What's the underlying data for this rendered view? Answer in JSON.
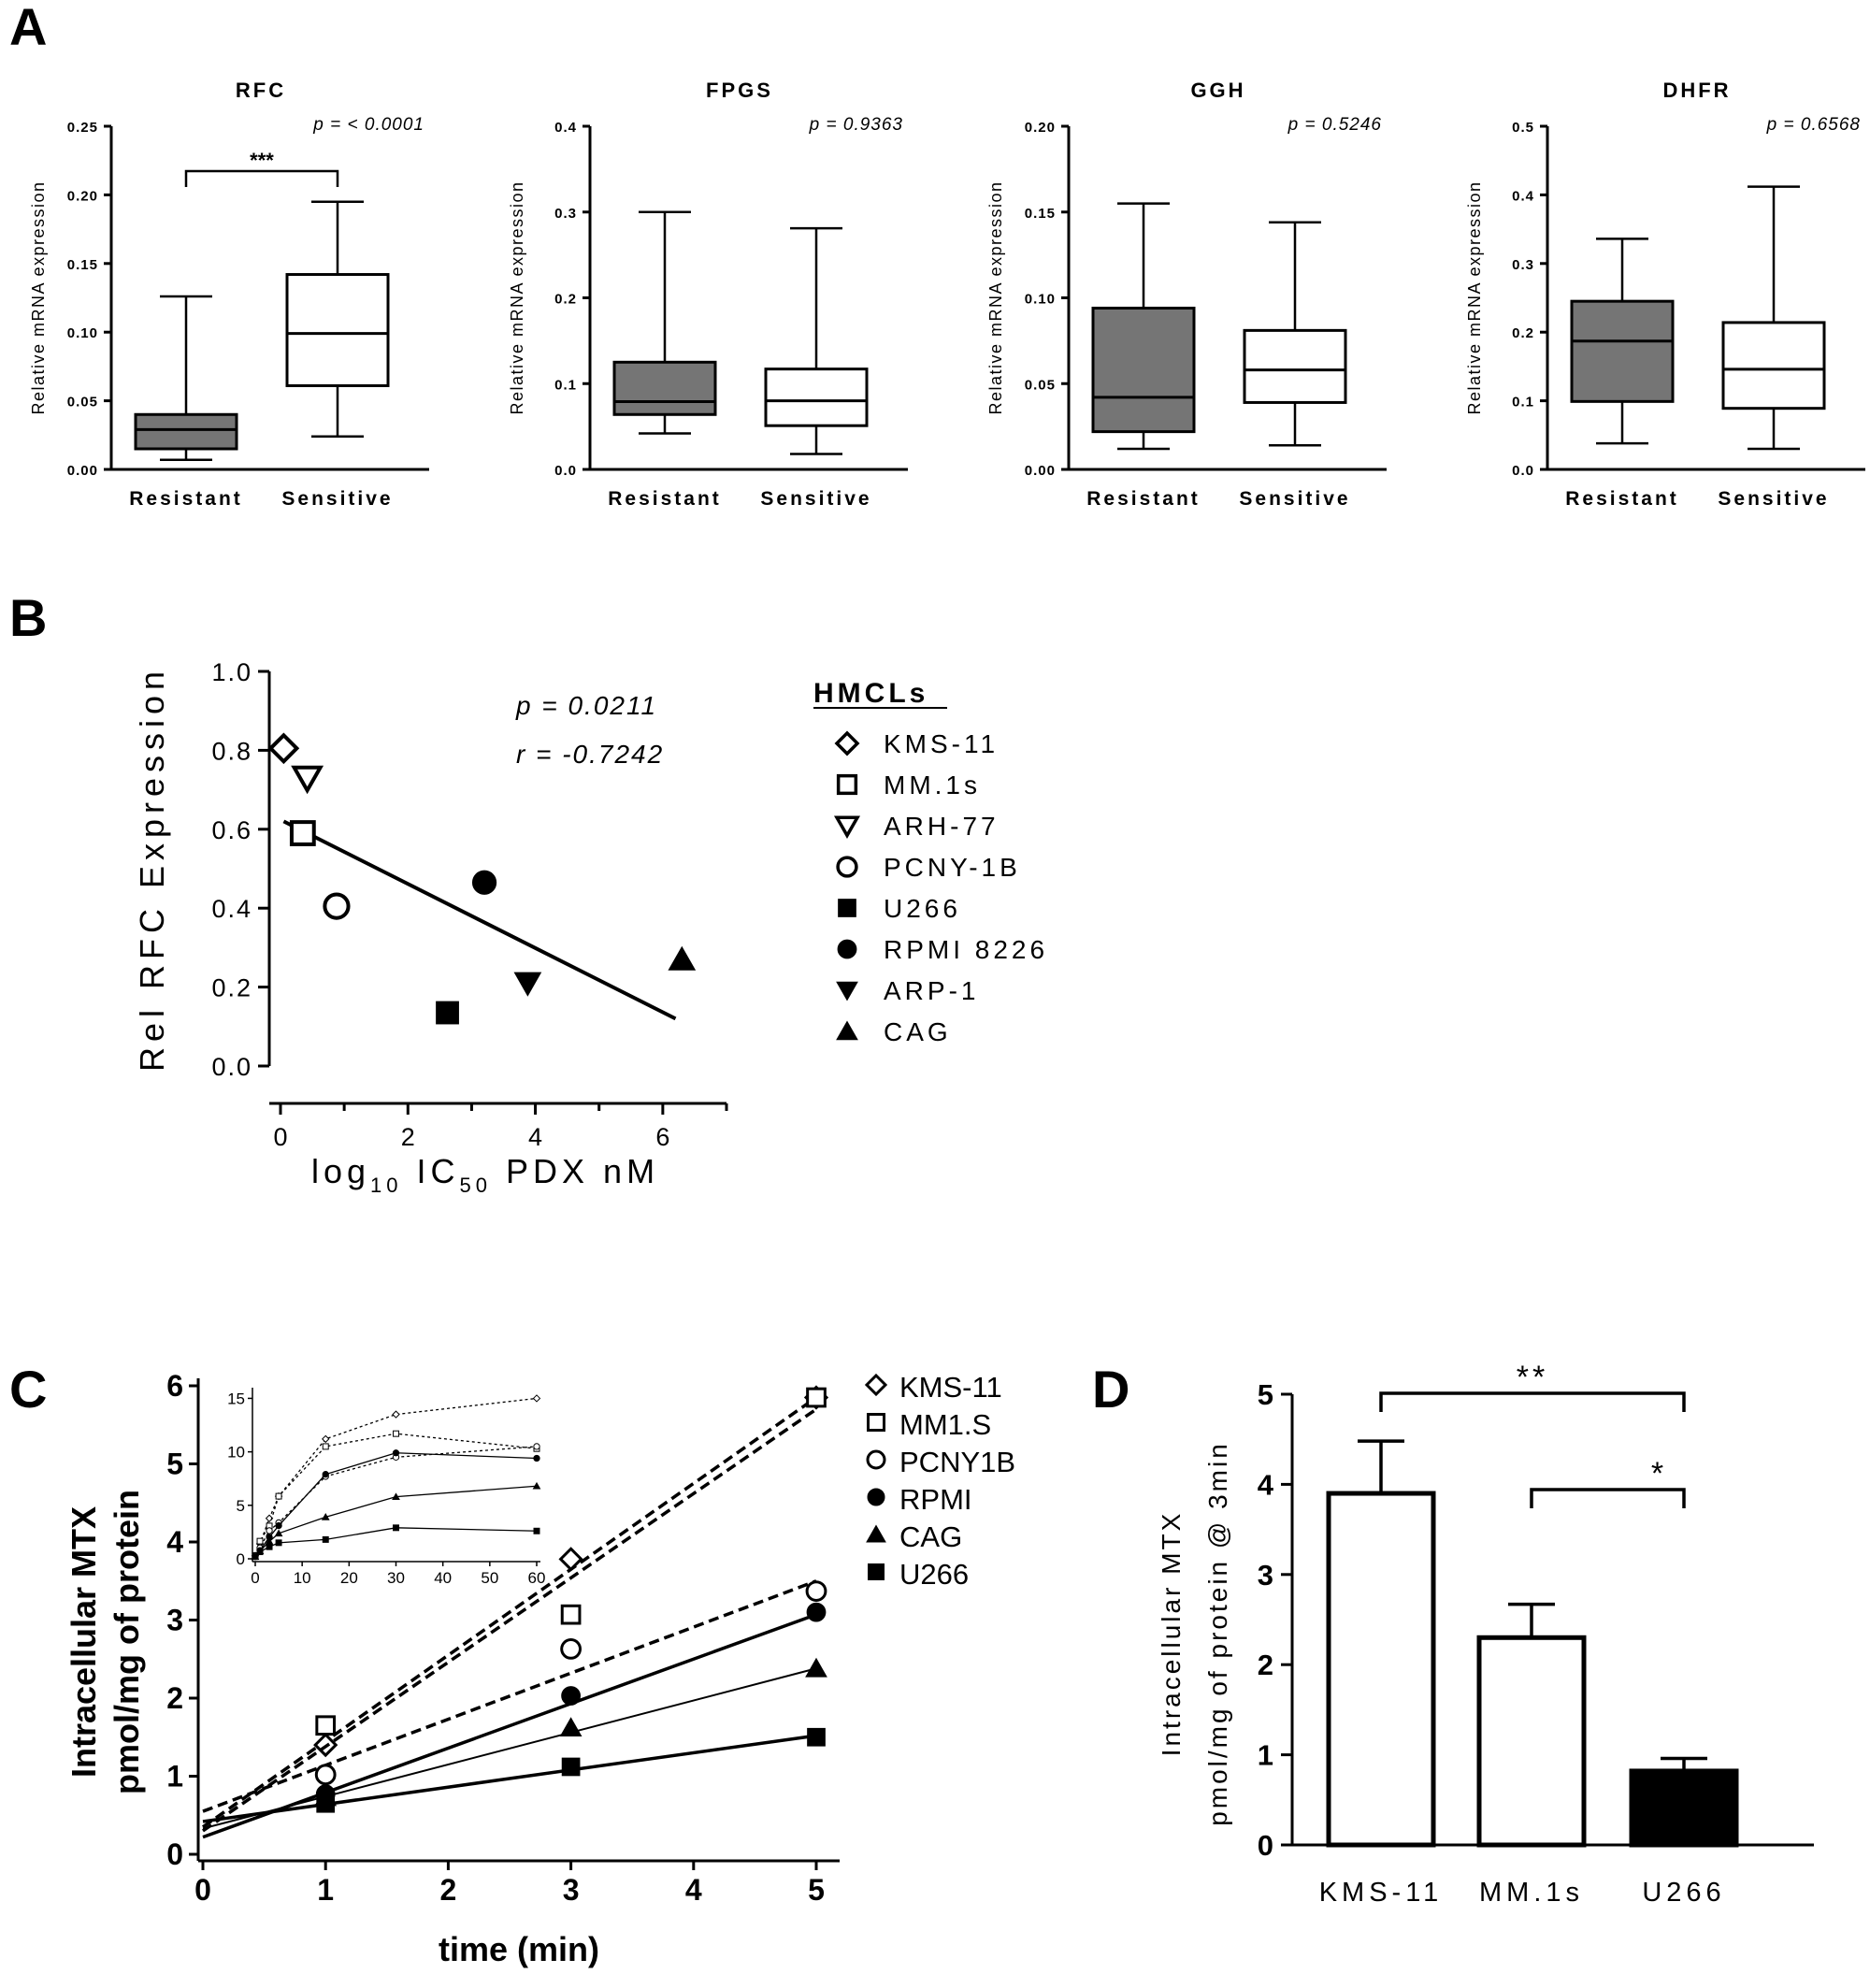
{
  "panel_labels": [
    "A",
    "B",
    "C",
    "D"
  ],
  "chart_data": [
    {
      "id": "A1",
      "type": "box",
      "title": "RFC",
      "ylabel": "Relative mRNA expression",
      "categories": [
        "Resistant",
        "Sensitive"
      ],
      "ylim": [
        0,
        0.25
      ],
      "yticks": [
        "0.00",
        "0.05",
        "0.10",
        "0.15",
        "0.20",
        "0.25"
      ],
      "pvalue": "p = < 0.0001",
      "significance": "***",
      "boxes": [
        {
          "group": "Resistant",
          "min": 0.007,
          "q1": 0.015,
          "median": 0.029,
          "q3": 0.04,
          "max": 0.126,
          "fill": "#757575"
        },
        {
          "group": "Sensitive",
          "min": 0.024,
          "q1": 0.061,
          "median": 0.099,
          "q3": 0.142,
          "max": 0.195,
          "fill": "#ffffff"
        }
      ]
    },
    {
      "id": "A2",
      "type": "box",
      "title": "FPGS",
      "ylabel": "Relative mRNA expression",
      "categories": [
        "Resistant",
        "Sensitive"
      ],
      "ylim": [
        0,
        0.4
      ],
      "yticks": [
        "0.0",
        "0.1",
        "0.2",
        "0.3",
        "0.4"
      ],
      "pvalue": "p =  0.9363",
      "boxes": [
        {
          "group": "Resistant",
          "min": 0.042,
          "q1": 0.064,
          "median": 0.079,
          "q3": 0.125,
          "max": 0.3,
          "fill": "#757575"
        },
        {
          "group": "Sensitive",
          "min": 0.018,
          "q1": 0.051,
          "median": 0.08,
          "q3": 0.117,
          "max": 0.281,
          "fill": "#ffffff"
        }
      ]
    },
    {
      "id": "A3",
      "type": "box",
      "title": "GGH",
      "ylabel": "Relative mRNA expression",
      "categories": [
        "Resistant",
        "Sensitive"
      ],
      "ylim": [
        0,
        0.2
      ],
      "yticks": [
        "0.00",
        "0.05",
        "0.10",
        "0.15",
        "0.20"
      ],
      "pvalue": "p =  0.5246",
      "boxes": [
        {
          "group": "Resistant",
          "min": 0.012,
          "q1": 0.022,
          "median": 0.042,
          "q3": 0.094,
          "max": 0.155,
          "fill": "#757575"
        },
        {
          "group": "Sensitive",
          "min": 0.014,
          "q1": 0.039,
          "median": 0.058,
          "q3": 0.081,
          "max": 0.144,
          "fill": "#ffffff"
        }
      ]
    },
    {
      "id": "A4",
      "type": "box",
      "title": "DHFR",
      "ylabel": "Relative mRNA expression",
      "categories": [
        "Resistant",
        "Sensitive"
      ],
      "ylim": [
        0,
        0.5
      ],
      "yticks": [
        "0.0",
        "0.1",
        "0.2",
        "0.3",
        "0.4",
        "0.5"
      ],
      "pvalue": "p =  0.6568",
      "boxes": [
        {
          "group": "Resistant",
          "min": 0.038,
          "q1": 0.099,
          "median": 0.187,
          "q3": 0.245,
          "max": 0.336,
          "fill": "#757575"
        },
        {
          "group": "Sensitive",
          "min": 0.03,
          "q1": 0.089,
          "median": 0.146,
          "q3": 0.214,
          "max": 0.412,
          "fill": "#ffffff"
        }
      ]
    },
    {
      "id": "B",
      "type": "scatter",
      "ylabel": "Rel RFC Expression",
      "xlabel_parts": [
        "log",
        "10",
        " IC",
        "50",
        " PDX nM"
      ],
      "xlim": [
        0,
        7
      ],
      "ylim": [
        0,
        1.0
      ],
      "xticks": [
        "0",
        "2",
        "4",
        "6"
      ],
      "yticks": [
        "0.0",
        "0.2",
        "0.4",
        "0.6",
        "0.8",
        "1.0"
      ],
      "pvalue": "p = 0.0211",
      "rvalue": "r = -0.7242",
      "legend_title": "HMCLs",
      "points": [
        {
          "name": "KMS-11",
          "x": 0.05,
          "y": 0.805,
          "marker": "diamond-open"
        },
        {
          "name": "MM.1s",
          "x": 0.35,
          "y": 0.59,
          "marker": "square-open"
        },
        {
          "name": "ARH-77",
          "x": 0.42,
          "y": 0.73,
          "marker": "tri-down-open"
        },
        {
          "name": "PCNY-1B",
          "x": 0.88,
          "y": 0.405,
          "marker": "circle-open"
        },
        {
          "name": "U266",
          "x": 2.62,
          "y": 0.135,
          "marker": "square"
        },
        {
          "name": "RPMI 8226",
          "x": 3.2,
          "y": 0.465,
          "marker": "circle"
        },
        {
          "name": "ARP-1",
          "x": 3.88,
          "y": 0.21,
          "marker": "tri-down"
        },
        {
          "name": "CAG",
          "x": 6.3,
          "y": 0.27,
          "marker": "tri-up"
        }
      ],
      "fit": {
        "x": [
          0.05,
          6.2
        ],
        "y": [
          0.62,
          0.12
        ]
      }
    },
    {
      "id": "C",
      "type": "line",
      "ylabel_lines": [
        "Intracellular MTX",
        "pmol/mg of protein"
      ],
      "xlabel": "time (min)",
      "xlim": [
        0,
        5.2
      ],
      "ylim": [
        0,
        6
      ],
      "xticks": [
        "0",
        "1",
        "2",
        "3",
        "4",
        "5"
      ],
      "yticks": [
        "0",
        "1",
        "2",
        "3",
        "4",
        "5",
        "6"
      ],
      "series": [
        {
          "name": "KMS-11",
          "marker": "diamond-open",
          "line": "dashed",
          "x": [
            1,
            3,
            5
          ],
          "y": [
            1.4,
            3.78,
            5.85
          ],
          "fit": [
            0.35,
            1.1
          ]
        },
        {
          "name": "MM1.S",
          "marker": "square-open",
          "line": "dashed",
          "x": [
            1,
            3,
            5
          ],
          "y": [
            1.65,
            3.07,
            5.85
          ],
          "fit": [
            0.3,
            1.08
          ]
        },
        {
          "name": "PCNY1B",
          "marker": "circle-open",
          "line": "dashed",
          "x": [
            1,
            3,
            5
          ],
          "y": [
            1.02,
            2.63,
            3.37
          ],
          "fit": [
            0.55,
            0.59
          ]
        },
        {
          "name": "RPMI",
          "marker": "circle",
          "line": "solid-thick",
          "x": [
            1,
            3,
            5
          ],
          "y": [
            0.77,
            2.03,
            3.1
          ],
          "fit": [
            0.22,
            0.57
          ]
        },
        {
          "name": "CAG",
          "marker": "tri-up",
          "line": "solid-thin",
          "x": [
            1,
            3,
            5
          ],
          "y": [
            0.73,
            1.62,
            2.38
          ],
          "fit": [
            0.33,
            0.41
          ]
        },
        {
          "name": "U266",
          "marker": "square",
          "line": "solid-thick",
          "x": [
            1,
            3,
            5
          ],
          "y": [
            0.65,
            1.12,
            1.5
          ],
          "fit": [
            0.42,
            0.22
          ]
        }
      ],
      "inset": {
        "xlim": [
          0,
          60
        ],
        "ylim": [
          0,
          16
        ],
        "xticks": [
          "0",
          "10",
          "20",
          "30",
          "40",
          "50",
          "60"
        ],
        "yticks": [
          "0",
          "5",
          "10",
          "15"
        ],
        "series": [
          {
            "name": "KMS-11",
            "marker": "diamond-open",
            "line": "dotted",
            "x": [
              0,
              1,
              3,
              5,
              15,
              30,
              60
            ],
            "y": [
              0.3,
              1.4,
              3.78,
              5.85,
              11.2,
              13.5,
              15.0
            ]
          },
          {
            "name": "MM1.S",
            "marker": "square-open",
            "line": "dotted",
            "x": [
              0,
              1,
              3,
              5,
              15,
              30,
              60
            ],
            "y": [
              0.3,
              1.65,
              3.07,
              5.85,
              10.5,
              11.7,
              10.3
            ]
          },
          {
            "name": "PCNY1B",
            "marker": "circle-open",
            "line": "dotted",
            "x": [
              0,
              1,
              3,
              5,
              15,
              30,
              60
            ],
            "y": [
              0.3,
              1.02,
              2.63,
              3.37,
              7.7,
              9.5,
              10.5
            ]
          },
          {
            "name": "RPMI",
            "marker": "circle",
            "line": "solid",
            "x": [
              0,
              1,
              3,
              5,
              15,
              30,
              60
            ],
            "y": [
              0.2,
              0.77,
              2.03,
              3.1,
              7.9,
              9.9,
              9.4
            ]
          },
          {
            "name": "CAG",
            "marker": "tri-up",
            "line": "solid",
            "x": [
              0,
              1,
              3,
              5,
              15,
              30,
              60
            ],
            "y": [
              0.2,
              0.73,
              1.62,
              2.38,
              3.9,
              5.8,
              6.8
            ]
          },
          {
            "name": "U266",
            "marker": "square",
            "line": "solid",
            "x": [
              0,
              1,
              3,
              5,
              15,
              30,
              60
            ],
            "y": [
              0.2,
              0.65,
              1.12,
              1.5,
              1.8,
              2.9,
              2.6
            ]
          }
        ]
      }
    },
    {
      "id": "D",
      "type": "bar",
      "ylabel_lines": [
        "Intracellular MTX",
        "pmol/mg of protein @ 3min"
      ],
      "categories": [
        "KMS-11",
        "MM.1s",
        "U266"
      ],
      "values": [
        3.9,
        2.3,
        0.82
      ],
      "errors": [
        0.58,
        0.37,
        0.14
      ],
      "fills": [
        "#ffffff",
        "#ffffff",
        "#000000"
      ],
      "ylim": [
        0,
        5
      ],
      "yticks": [
        "0",
        "1",
        "2",
        "3",
        "4",
        "5"
      ],
      "significance": [
        {
          "from": "KMS-11",
          "to": "U266",
          "label": "**"
        },
        {
          "from": "MM.1s",
          "to": "U266",
          "label": "*"
        }
      ]
    }
  ]
}
